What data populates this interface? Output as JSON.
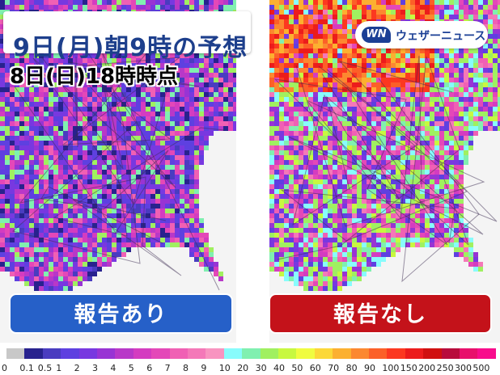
{
  "title": "9日(月)朝9時の予想",
  "subtitle": "8日(日)18時時点",
  "brand": {
    "logo_text": "WN",
    "name": "ウェザーニュース"
  },
  "panels": {
    "left": {
      "label": "報告あり"
    },
    "right": {
      "label": "報告なし"
    }
  },
  "legend": {
    "labels": [
      "0",
      "0.1",
      "0.5",
      "1",
      "2",
      "3",
      "4",
      "5",
      "6",
      "7",
      "8",
      "9",
      "10",
      "20",
      "30",
      "40",
      "50",
      "60",
      "70",
      "80",
      "90",
      "100",
      "150",
      "200",
      "250",
      "300",
      "500"
    ],
    "colors": [
      "#c8c8c8",
      "#28228e",
      "#4a3cc0",
      "#5e40e0",
      "#7838e0",
      "#9834d4",
      "#b838c8",
      "#d43cc0",
      "#e448b8",
      "#f060b4",
      "#f478b8",
      "#f894c0",
      "#88fcfc",
      "#80f0b0",
      "#a0f060",
      "#c8f840",
      "#f0fc40",
      "#fcd838",
      "#fcb030",
      "#fc8830",
      "#fc6028",
      "#fc3820",
      "#ec1c1c",
      "#d01010",
      "#b80c3c",
      "#e8106c",
      "#f80c8c"
    ]
  }
}
